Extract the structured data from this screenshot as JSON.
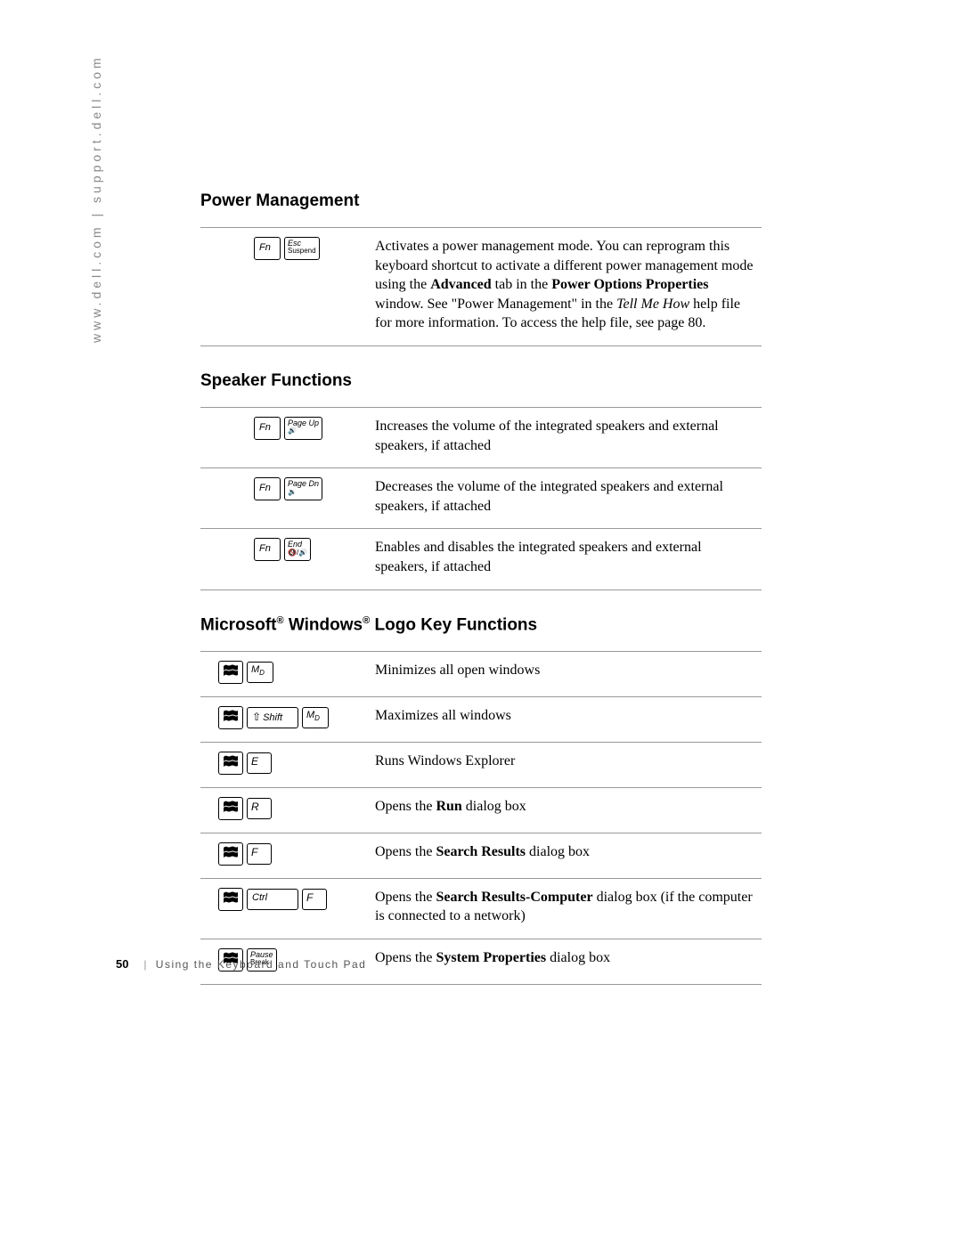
{
  "sidebar": {
    "text": "www.dell.com | support.dell.com",
    "color": "#888888",
    "fontsize": 14,
    "letterspacing": 4
  },
  "sections": {
    "power": {
      "heading": "Power Management",
      "rows": [
        {
          "keys": [
            {
              "type": "fn",
              "label": "Fn"
            },
            {
              "type": "tall",
              "line1": "Esc",
              "line2": "Suspend"
            }
          ],
          "desc_parts": [
            {
              "text": "Activates a power management mode. You can reprogram this keyboard shortcut to activate a different power management mode using the "
            },
            {
              "text": "Advanced",
              "bold": true
            },
            {
              "text": " tab in the "
            },
            {
              "text": "Power Options Properties",
              "bold": true
            },
            {
              "text": " window. See \"Power Management\" in the "
            },
            {
              "text": "Tell Me How",
              "italic": true
            },
            {
              "text": " help file for more information. To access the help file, see page 80."
            }
          ]
        }
      ]
    },
    "speaker": {
      "heading": "Speaker Functions",
      "rows": [
        {
          "keys": [
            {
              "type": "fn",
              "label": "Fn"
            },
            {
              "type": "tall",
              "line1": "Page Up",
              "line2": "🔊"
            }
          ],
          "desc_parts": [
            {
              "text": "Increases the volume of the integrated speakers and external speakers, if attached"
            }
          ]
        },
        {
          "keys": [
            {
              "type": "fn",
              "label": "Fn"
            },
            {
              "type": "tall",
              "line1": "Page Dn",
              "line2": "🔉"
            }
          ],
          "desc_parts": [
            {
              "text": "Decreases the volume of the integrated speakers and external speakers, if attached"
            }
          ]
        },
        {
          "keys": [
            {
              "type": "fn",
              "label": "Fn"
            },
            {
              "type": "tall",
              "line1": "End",
              "line2": "🔇/🔊"
            }
          ],
          "desc_parts": [
            {
              "text": "Enables and disables the integrated speakers and external speakers, if attached"
            }
          ]
        }
      ]
    },
    "winlogo": {
      "heading_parts": [
        {
          "text": "Microsoft"
        },
        {
          "text": "®",
          "sup": true
        },
        {
          "text": " Windows"
        },
        {
          "text": "®",
          "sup": true
        },
        {
          "text": " Logo Key Functions"
        }
      ],
      "rows": [
        {
          "keys": [
            {
              "type": "winlogo"
            },
            {
              "type": "m",
              "label": "M",
              "sub": "D"
            }
          ],
          "desc_parts": [
            {
              "text": "Minimizes all open windows"
            }
          ]
        },
        {
          "keys": [
            {
              "type": "winlogo"
            },
            {
              "type": "shift",
              "label": "Shift"
            },
            {
              "type": "m",
              "label": "M",
              "sub": "D"
            }
          ],
          "desc_parts": [
            {
              "text": "Maximizes all windows"
            }
          ]
        },
        {
          "keys": [
            {
              "type": "winlogo"
            },
            {
              "type": "letter",
              "label": "E"
            }
          ],
          "desc_parts": [
            {
              "text": "Runs Windows Explorer"
            }
          ]
        },
        {
          "keys": [
            {
              "type": "winlogo"
            },
            {
              "type": "letter",
              "label": "R"
            }
          ],
          "desc_parts": [
            {
              "text": "Opens the "
            },
            {
              "text": "Run",
              "bold": true
            },
            {
              "text": " dialog box"
            }
          ]
        },
        {
          "keys": [
            {
              "type": "winlogo"
            },
            {
              "type": "letter",
              "label": "F"
            }
          ],
          "desc_parts": [
            {
              "text": "Opens the "
            },
            {
              "text": "Search Results",
              "bold": true
            },
            {
              "text": " dialog box"
            }
          ]
        },
        {
          "keys": [
            {
              "type": "winlogo"
            },
            {
              "type": "wide",
              "label": "Ctrl"
            },
            {
              "type": "letter",
              "label": "F"
            }
          ],
          "desc_parts": [
            {
              "text": "Opens the "
            },
            {
              "text": "Search Results-Computer",
              "bold": true
            },
            {
              "text": " dialog box (if the computer is connected to a network)"
            }
          ]
        },
        {
          "keys": [
            {
              "type": "winlogo"
            },
            {
              "type": "tall",
              "line1": "Pause",
              "line2": "Break"
            }
          ],
          "desc_parts": [
            {
              "text": "Opens the "
            },
            {
              "text": "System Properties",
              "bold": true
            },
            {
              "text": " dialog box"
            }
          ]
        }
      ]
    }
  },
  "footer": {
    "page_number": "50",
    "separator": "|",
    "chapter": "Using the Keyboard and Touch Pad"
  },
  "styling": {
    "page_bg": "#ffffff",
    "text_color": "#000000",
    "rule_color": "#999999",
    "heading_font": "Arial",
    "heading_size": 19,
    "body_font": "Georgia",
    "body_size": 16,
    "key_border": "#000000"
  }
}
